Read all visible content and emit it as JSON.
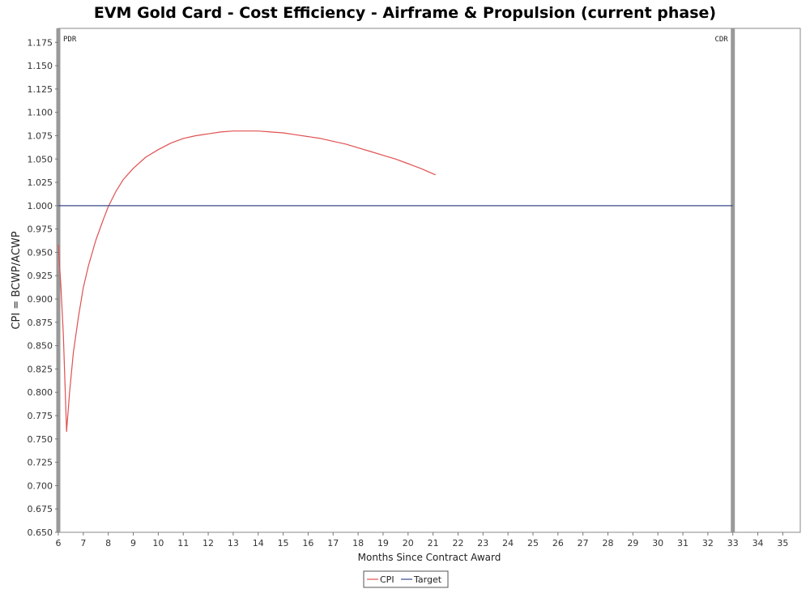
{
  "chart_data": {
    "type": "line",
    "title": "EVM Gold Card - Cost Efficiency - Airframe & Propulsion (current phase)",
    "xlabel": "Months Since Contract Award",
    "ylabel": "CPI = BCWP/ACWP",
    "xlim": [
      6,
      35.7
    ],
    "ylim": [
      0.65,
      1.19
    ],
    "x_ticks": [
      6,
      7,
      8,
      9,
      10,
      11,
      12,
      13,
      14,
      15,
      16,
      17,
      18,
      19,
      20,
      21,
      22,
      23,
      24,
      25,
      26,
      27,
      28,
      29,
      30,
      31,
      32,
      33,
      34,
      35
    ],
    "y_ticks": [
      "0.650",
      "0.675",
      "0.700",
      "0.725",
      "0.750",
      "0.775",
      "0.800",
      "0.825",
      "0.850",
      "0.875",
      "0.900",
      "0.925",
      "0.950",
      "0.975",
      "1.000",
      "1.025",
      "1.050",
      "1.075",
      "1.100",
      "1.125",
      "1.150",
      "1.175"
    ],
    "grid": false,
    "legend_position": "bottom-center",
    "series": [
      {
        "name": "CPI",
        "color": "#e05050",
        "points": [
          [
            6.0,
            0.958
          ],
          [
            6.1,
            0.915
          ],
          [
            6.2,
            0.862
          ],
          [
            6.33,
            0.758
          ],
          [
            6.45,
            0.8
          ],
          [
            6.6,
            0.842
          ],
          [
            6.8,
            0.88
          ],
          [
            7.0,
            0.912
          ],
          [
            7.2,
            0.935
          ],
          [
            7.5,
            0.963
          ],
          [
            7.8,
            0.985
          ],
          [
            8.0,
            0.999
          ],
          [
            8.3,
            1.015
          ],
          [
            8.6,
            1.028
          ],
          [
            9.0,
            1.04
          ],
          [
            9.5,
            1.052
          ],
          [
            10.0,
            1.06
          ],
          [
            10.5,
            1.067
          ],
          [
            11.0,
            1.072
          ],
          [
            11.5,
            1.075
          ],
          [
            12.0,
            1.077
          ],
          [
            12.5,
            1.079
          ],
          [
            13.0,
            1.08
          ],
          [
            13.5,
            1.08
          ],
          [
            14.0,
            1.08
          ],
          [
            14.5,
            1.079
          ],
          [
            15.0,
            1.078
          ],
          [
            15.5,
            1.076
          ],
          [
            16.0,
            1.074
          ],
          [
            16.5,
            1.072
          ],
          [
            17.0,
            1.069
          ],
          [
            17.5,
            1.066
          ],
          [
            18.0,
            1.062
          ],
          [
            18.5,
            1.058
          ],
          [
            19.0,
            1.054
          ],
          [
            19.5,
            1.05
          ],
          [
            20.0,
            1.045
          ],
          [
            20.5,
            1.04
          ],
          [
            21.1,
            1.033
          ]
        ]
      },
      {
        "name": "Target",
        "color": "#3a4a8a",
        "points": [
          [
            6.0,
            1.0
          ],
          [
            33.0,
            1.0
          ]
        ]
      }
    ],
    "milestones": [
      {
        "label": "PDR",
        "x": 6.0
      },
      {
        "label": "CDR",
        "x": 33.0
      }
    ]
  }
}
